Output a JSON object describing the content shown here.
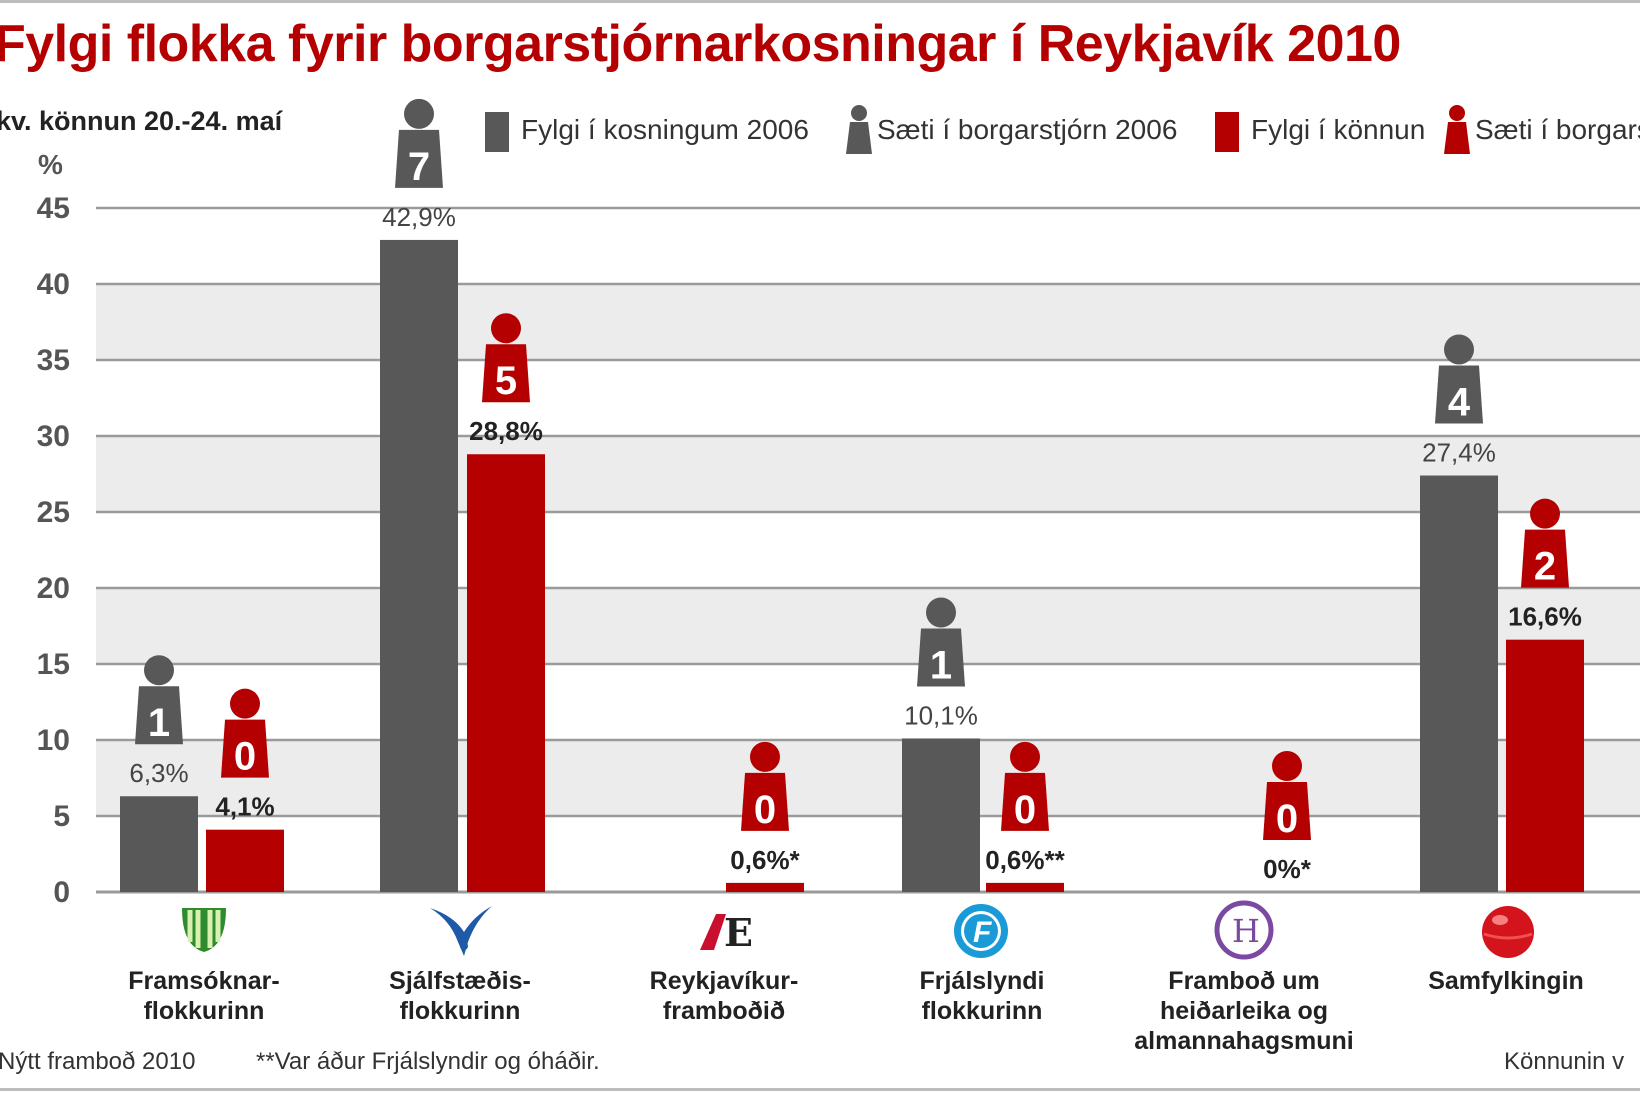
{
  "title": "Fylgi flokka fyrir borgarstjórnarkosningar í Reykjavík 2010",
  "subtitle": "kv. könnun 20.-24. maí",
  "footnotes": {
    "left": "Nýtt framboð 2010",
    "middle": "**Var áður Frjálslyndir og óháðir.",
    "right": "Könnunin v"
  },
  "colors": {
    "grey": "#585858",
    "red": "#b40000",
    "band": "#ececec",
    "title": "#b40000"
  },
  "legend": [
    {
      "label": "Fylgi í kosningum 2006",
      "kind": "square",
      "color": "grey"
    },
    {
      "label": "Sæti í borgarstjórn 2006",
      "kind": "person",
      "color": "grey"
    },
    {
      "label": "Fylgi í könnun",
      "kind": "square",
      "color": "red"
    },
    {
      "label": "Sæti í borgars",
      "kind": "person",
      "color": "red"
    }
  ],
  "parties": [
    {
      "label_lines": [
        "Framsóknar-",
        "flokkurinn"
      ],
      "logo": "framsokn-logo"
    },
    {
      "label_lines": [
        "Sjálfstæðis-",
        "flokkurinn"
      ],
      "logo": "falcon-logo"
    },
    {
      "label_lines": [
        "Reykjavíkur-",
        "framboðið"
      ],
      "logo": "re-logo"
    },
    {
      "label_lines": [
        "Frjálslyndi",
        "flokkurinn"
      ],
      "logo": "f-circle-logo"
    },
    {
      "label_lines": [
        "Framboð um",
        "heiðarleika og",
        "almannahagsmuni"
      ],
      "logo": "h-circle-logo"
    },
    {
      "label_lines": [
        "Samfylkingin"
      ],
      "logo": "red-ball-logo"
    }
  ],
  "chart_data": {
    "type": "bar",
    "ylabel": "%",
    "ylim": [
      0,
      45
    ],
    "yticks": [
      "0",
      "5",
      "10",
      "15",
      "20",
      "25",
      "30",
      "35",
      "40",
      "45"
    ],
    "grid": true,
    "legend_position": "top",
    "categories": [
      "Framsóknarflokkurinn",
      "Sjálfstæðisflokkurinn",
      "Reykjavíkurframboðið",
      "Frjálslyndi flokkurinn",
      "Framboð um heiðarleika og almannahagsmuni",
      "Samfylkingin"
    ],
    "series": [
      {
        "name": "Fylgi í kosningum 2006",
        "color": "grey",
        "values": [
          6.3,
          42.9,
          null,
          10.1,
          null,
          27.4
        ],
        "labels": [
          "6,3%",
          "42,9%",
          "",
          "10,1%",
          "",
          "27,4%"
        ],
        "seats": [
          "1",
          "7",
          "",
          "1",
          "",
          "4"
        ]
      },
      {
        "name": "Fylgi í könnun",
        "color": "red",
        "values": [
          4.1,
          28.8,
          0.6,
          0.6,
          0,
          16.6
        ],
        "labels": [
          "4,1%",
          "28,8%",
          "0,6%*",
          "0,6%**",
          "0%*",
          "16,6%"
        ],
        "seats": [
          "0",
          "5",
          "0",
          "0",
          "0",
          "2"
        ]
      }
    ]
  }
}
